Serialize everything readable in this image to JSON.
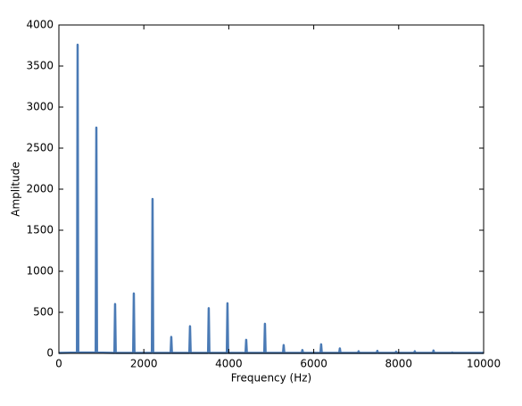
{
  "chart_data": {
    "type": "line",
    "x_label": "Frequency (Hz)",
    "y_label": "Amplitude",
    "color": "#4a7ab5",
    "x": [
      0,
      426,
      441,
      456,
      867,
      882,
      897,
      1308,
      1323,
      1338,
      1749,
      1764,
      1779,
      2190,
      2205,
      2220,
      2631,
      2646,
      2661,
      3072,
      3087,
      3102,
      3513,
      3528,
      3543,
      3954,
      3969,
      3984,
      4395,
      4410,
      4425,
      4836,
      4851,
      4866,
      5277,
      5292,
      5307,
      5718,
      5733,
      5748,
      6159,
      6174,
      6189,
      6600,
      6615,
      6630,
      7041,
      7056,
      7071,
      7482,
      7497,
      7512,
      7923,
      7938,
      7953,
      8364,
      8379,
      8394,
      8805,
      8820,
      8835,
      9246,
      9261,
      9276,
      10000
    ],
    "values": [
      5,
      10,
      3760,
      10,
      10,
      2750,
      10,
      5,
      600,
      5,
      5,
      730,
      5,
      5,
      1880,
      5,
      5,
      200,
      5,
      5,
      330,
      5,
      5,
      550,
      5,
      5,
      610,
      5,
      5,
      165,
      5,
      5,
      360,
      5,
      5,
      100,
      5,
      5,
      40,
      5,
      5,
      110,
      5,
      5,
      60,
      5,
      5,
      25,
      5,
      5,
      30,
      5,
      5,
      20,
      5,
      5,
      25,
      5,
      5,
      35,
      5,
      5,
      10,
      5,
      5
    ],
    "xlim": [
      0,
      10000
    ],
    "xticks": [
      0,
      2000,
      4000,
      6000,
      8000,
      10000
    ],
    "ylim": [
      0,
      4000
    ],
    "yticks": [
      0,
      500,
      1000,
      1500,
      2000,
      2500,
      3000,
      3500,
      4000
    ]
  }
}
